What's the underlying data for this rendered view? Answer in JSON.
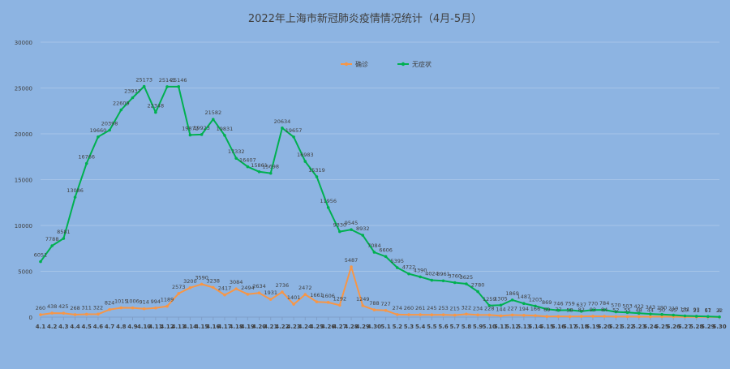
{
  "chart_data": {
    "type": "line",
    "title": "2022年上海市新冠肺炎疫情情况统计（4月-5月）",
    "xlabel": "",
    "ylabel": "",
    "ylim": [
      0,
      30000
    ],
    "y_ticks": [
      0,
      5000,
      10000,
      15000,
      20000,
      25000,
      30000
    ],
    "grid": true,
    "legend_position": "top-center",
    "categories": [
      "4.1",
      "4.2",
      "4.3",
      "4.4",
      "4.5",
      "4.6",
      "4.7",
      "4.8",
      "4.9",
      "4.10",
      "4.11",
      "4.12",
      "4.13",
      "4.14",
      "4.15",
      "4.16",
      "4.17",
      "4.18",
      "4.19",
      "4.20",
      "4.21",
      "4.22",
      "4.23",
      "4.24",
      "4.25",
      "4.26",
      "4.27",
      "4.28",
      "4.29",
      "4.30",
      "5.1",
      "5.2",
      "5.3",
      "5.4",
      "5.5",
      "5.6",
      "5.7",
      "5.8",
      "5.9",
      "5.10",
      "5.11",
      "5.12",
      "5.13",
      "5.14",
      "5.15",
      "5.16",
      "5.17",
      "5.18",
      "5.19",
      "5.20",
      "5.21",
      "5.22",
      "5.23",
      "5.24",
      "5.25",
      "5.26",
      "5.27",
      "5.28",
      "5.29",
      "5.30"
    ],
    "series": [
      {
        "name": "确诊",
        "color": "#f79646",
        "values": [
          260,
          438,
          425,
          268,
          311,
          322,
          824,
          1015,
          1006,
          914,
          994,
          1189,
          2573,
          3200,
          3590,
          3238,
          2417,
          3084,
          2494,
          2634,
          1931,
          2736,
          1401,
          2472,
          1661,
          1606,
          1292,
          5487,
          1249,
          788,
          727,
          274,
          260,
          261,
          245,
          253,
          215,
          322,
          234,
          228,
          144,
          227,
          194,
          166,
          69,
          77,
          58,
          82,
          93,
          84,
          52,
          55,
          48,
          44,
          50,
          45,
          29,
          21,
          17,
          8
        ]
      },
      {
        "name": "无症状",
        "color": "#00b050",
        "values": [
          6051,
          7788,
          8581,
          13086,
          16766,
          19660,
          20398,
          22609,
          23937,
          25173,
          22348,
          25141,
          25146,
          19872,
          19923,
          21582,
          19831,
          17332,
          16407,
          15861,
          15698,
          20634,
          19657,
          16983,
          15319,
          11956,
          9330,
          9545,
          8932,
          7084,
          6606,
          5395,
          4722,
          4390,
          4024,
          3961,
          3760,
          3625,
          2780,
          1259,
          1305,
          1869,
          1487,
          1203,
          869,
          746,
          759,
          637,
          770,
          784,
          570,
          503,
          422,
          343,
          290,
          219,
          131,
          93,
          61,
          22
        ]
      }
    ]
  }
}
